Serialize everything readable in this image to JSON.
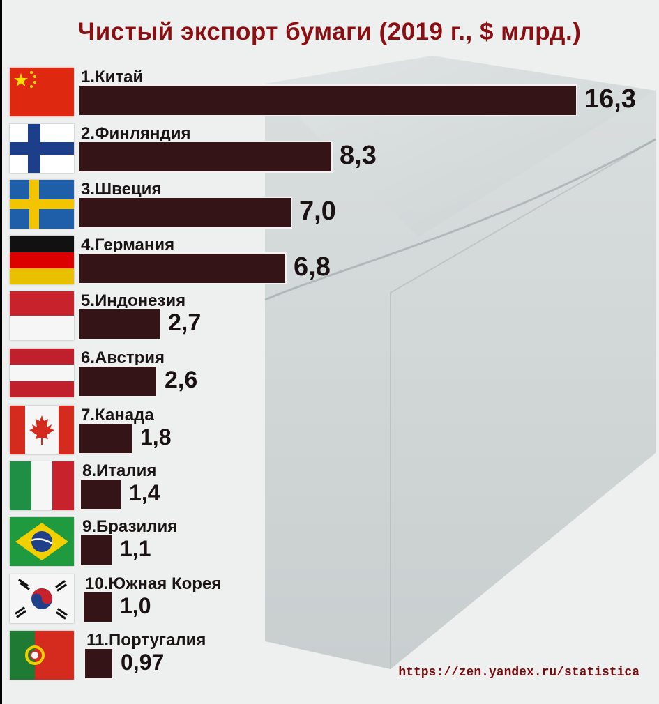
{
  "chart_data": {
    "type": "bar",
    "title": "Чистый экспорт бумаги (2019 г., $ млрд.)",
    "source": "https://zen.yandex.ru/statistica",
    "categories": [
      "1.Китай",
      "2.Финляндия",
      "3.Швеция",
      "4.Германия",
      "5.Индонезия",
      "6.Австрия",
      "7.Канада",
      "8.Италия",
      "9.Бразилия",
      "10.Южная Корея",
      "11.Португалия"
    ],
    "values": [
      16.3,
      8.3,
      7.0,
      6.8,
      2.7,
      2.6,
      1.8,
      1.4,
      1.1,
      1.0,
      0.97
    ],
    "value_labels": [
      "16,3",
      "8,3",
      "7,0",
      "6,8",
      "2,7",
      "2,6",
      "1,8",
      "1,4",
      "1,1",
      "1,0",
      "0,97"
    ],
    "flags": [
      "china-flag",
      "finland-flag",
      "sweden-flag",
      "germany-flag",
      "indonesia-flag",
      "austria-flag",
      "canada-flag",
      "italy-flag",
      "brazil-flag",
      "south-korea-flag",
      "portugal-flag"
    ],
    "bar_color": "#351417",
    "title_color": "#8a0f12",
    "source_color": "#7b0a0c"
  }
}
